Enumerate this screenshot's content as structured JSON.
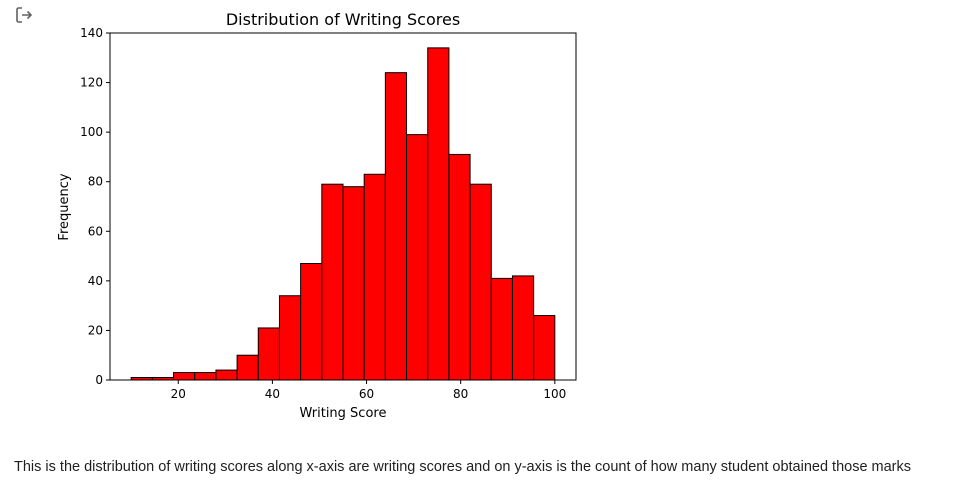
{
  "cell_output": {
    "icon": "output-redirect-icon",
    "caption": "This is the distribution of writing scores along x-axis are writing scores and on y-axis is the count of how many student obtained those marks"
  },
  "chart_data": {
    "type": "bar",
    "title": "Distribution of Writing Scores",
    "xlabel": "Writing Score",
    "ylabel": "Frequency",
    "bar_color": "#ff0000",
    "edge_color": "#000000",
    "xlim": [
      5.5,
      104.5
    ],
    "ylim": [
      0,
      140
    ],
    "xticks": [
      20,
      40,
      60,
      80,
      100
    ],
    "yticks": [
      0,
      20,
      40,
      60,
      80,
      100,
      120,
      140
    ],
    "bin_edges": [
      10,
      14.5,
      19,
      23.5,
      28,
      32.5,
      37,
      41.5,
      46,
      50.5,
      55,
      59.5,
      64,
      68.5,
      73,
      77.5,
      82,
      86.5,
      91,
      95.5,
      100
    ],
    "values": [
      1,
      1,
      3,
      3,
      4,
      10,
      21,
      34,
      47,
      79,
      78,
      83,
      124,
      99,
      134,
      91,
      79,
      41,
      42,
      26
    ],
    "grid": false,
    "legend": "none"
  }
}
